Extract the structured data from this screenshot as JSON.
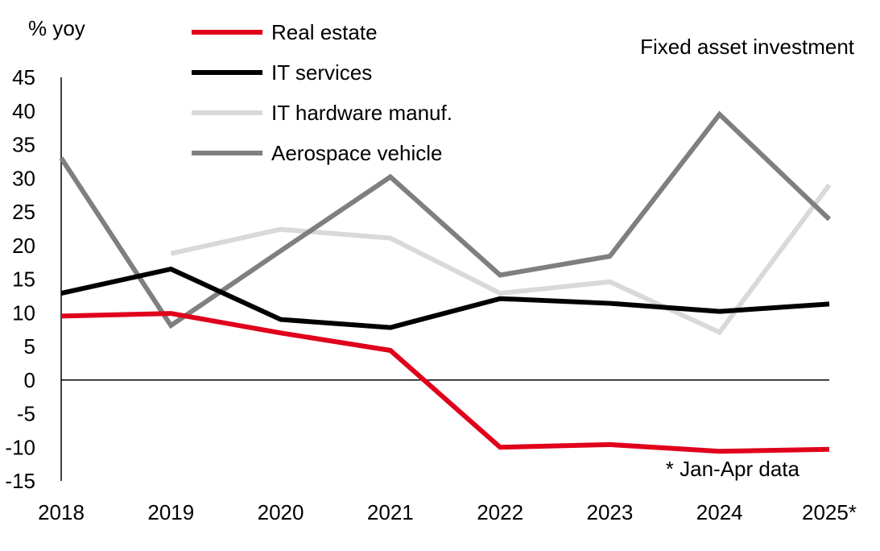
{
  "chart_data": {
    "type": "line",
    "title": "Fixed asset investment",
    "ylabel": "% yoy",
    "xlabel": "",
    "note": "* Jan-Apr data",
    "ylim": [
      -15,
      45
    ],
    "yticks": [
      "45",
      "40",
      "35",
      "30",
      "25",
      "20",
      "15",
      "10",
      "5",
      "0",
      "-5",
      "-10",
      "-15"
    ],
    "categories": [
      "2018",
      "2019",
      "2020",
      "2021",
      "2022",
      "2023",
      "2024",
      "2025*"
    ],
    "series": [
      {
        "name": "Real estate",
        "color": "#e0001b",
        "values": [
          9.5,
          9.9,
          7.0,
          4.4,
          -10.0,
          -9.6,
          -10.6,
          -10.3
        ]
      },
      {
        "name": "IT services",
        "color": "#000000",
        "values": [
          12.9,
          16.5,
          9.0,
          7.8,
          12.1,
          11.4,
          10.2,
          11.3
        ]
      },
      {
        "name": "IT hardware manuf.",
        "color": "#d9d9d9",
        "values": [
          null,
          18.8,
          22.4,
          21.1,
          12.9,
          14.6,
          7.1,
          29.0
        ]
      },
      {
        "name": "Aerospace vehicle",
        "color": "#7f7f7f",
        "values": [
          33.0,
          8.1,
          19.2,
          30.2,
          15.6,
          18.4,
          39.5,
          23.9
        ]
      }
    ]
  }
}
